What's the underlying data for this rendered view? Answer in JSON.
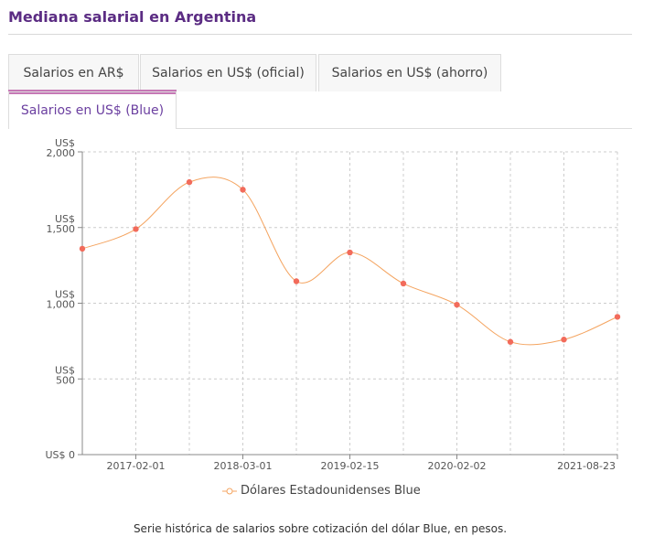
{
  "header": {
    "title": "Mediana salarial en Argentina"
  },
  "tabs": [
    {
      "label": "Salarios en AR$"
    },
    {
      "label": "Salarios en US$ (oficial)"
    },
    {
      "label": "Salarios en US$ (ahorro)"
    },
    {
      "label": "Salarios en US$ (Blue)",
      "active": true
    }
  ],
  "chart_data": {
    "type": "line",
    "x": [
      "2016-08",
      "2017-02-01",
      "2017-08",
      "2018-03-01",
      "2018-09",
      "2019-02-15",
      "2019-08",
      "2020-02-02",
      "2020-08",
      "2021-02",
      "2021-08-23"
    ],
    "series": [
      {
        "name": "Dólares Estadounidenses Blue",
        "color": "#f4a460",
        "marker_color": "#f26b5b",
        "values": [
          1360,
          1490,
          1800,
          1750,
          1145,
          1335,
          1130,
          990,
          745,
          760,
          910
        ]
      }
    ],
    "x_tick_labels": [
      "2017-02-01",
      "2018-03-01",
      "2019-02-15",
      "2020-02-02",
      "2021-08-23"
    ],
    "y_ticks": [
      {
        "value": 0,
        "label": "US$ 0"
      },
      {
        "value": 500,
        "label": "US$ 500"
      },
      {
        "value": 1000,
        "label": "US$ 1,000"
      },
      {
        "value": 1500,
        "label": "US$ 1,500"
      },
      {
        "value": 2000,
        "label": "US$ 2,000"
      }
    ],
    "ylim": [
      0,
      2000
    ],
    "grid": true,
    "legend_position": "bottom"
  },
  "caption": "Serie histórica de salarios sobre cotización del dólar Blue, en pesos."
}
